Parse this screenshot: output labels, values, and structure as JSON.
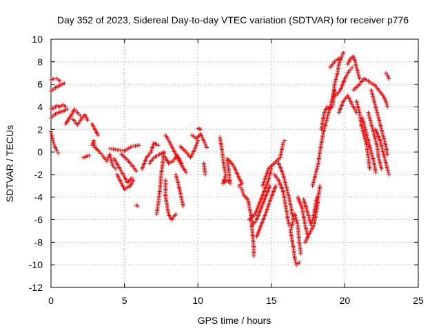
{
  "chart_data": {
    "type": "scatter",
    "title": "Day 352 of 2023, Sidereal Day-to-day VTEC variation (SDTVAR) for receiver p776",
    "xlabel": "GPS time / hours",
    "ylabel": "SDTVAR / TECUs",
    "xlim": [
      0,
      25
    ],
    "ylim": [
      -12,
      10
    ],
    "xticks": [
      "0",
      "5",
      "10",
      "15",
      "20",
      "25"
    ],
    "yticks": [
      "-12",
      "-10",
      "-8",
      "-6",
      "-4",
      "-2",
      "0",
      "2",
      "4",
      "6",
      "8",
      "10"
    ],
    "grid": true,
    "marker": "+",
    "series": [
      {
        "name": "SDTVAR",
        "color": "#ff0000",
        "points": [
          [
            0.0,
            6.4
          ],
          [
            0.2,
            6.5
          ],
          [
            0.4,
            6.5
          ],
          [
            0.6,
            6.3
          ],
          [
            0.0,
            5.4
          ],
          [
            0.3,
            5.7
          ],
          [
            0.6,
            5.9
          ],
          [
            0.9,
            6.1
          ],
          [
            0.0,
            3.8
          ],
          [
            0.2,
            3.9
          ],
          [
            0.4,
            4.1
          ],
          [
            0.6,
            4.0
          ],
          [
            0.8,
            4.2
          ],
          [
            1.0,
            4.0
          ],
          [
            0.0,
            3.0
          ],
          [
            0.2,
            3.3
          ],
          [
            0.5,
            3.5
          ],
          [
            0.8,
            3.6
          ],
          [
            1.1,
            3.8
          ],
          [
            0.0,
            1.8
          ],
          [
            0.1,
            1.2
          ],
          [
            0.2,
            0.7
          ],
          [
            0.3,
            0.4
          ],
          [
            0.4,
            0.1
          ],
          [
            0.5,
            -0.1
          ],
          [
            1.0,
            2.5
          ],
          [
            1.4,
            3.3
          ],
          [
            1.6,
            3.8
          ],
          [
            1.8,
            3.5
          ],
          [
            2.0,
            3.2
          ],
          [
            1.5,
            2.9
          ],
          [
            1.8,
            2.4
          ],
          [
            2.0,
            2.8
          ],
          [
            2.3,
            3.3
          ],
          [
            2.5,
            2.8
          ],
          [
            2.2,
            -0.5
          ],
          [
            2.6,
            -0.3
          ],
          [
            2.8,
            2.5
          ],
          [
            3.0,
            2.0
          ],
          [
            3.2,
            1.5
          ],
          [
            2.8,
            0.6
          ],
          [
            2.9,
            1.0
          ],
          [
            3.0,
            0.4
          ],
          [
            3.3,
            0.0
          ],
          [
            3.5,
            -0.3
          ],
          [
            3.8,
            -0.8
          ],
          [
            4.0,
            -0.2
          ],
          [
            4.2,
            -1.2
          ],
          [
            4.4,
            -1.5
          ],
          [
            4.0,
            0.3
          ],
          [
            4.5,
            0.2
          ],
          [
            5.0,
            0.1
          ],
          [
            5.5,
            0.5
          ],
          [
            6.0,
            0.6
          ],
          [
            4.3,
            -0.6
          ],
          [
            4.7,
            -1.5
          ],
          [
            5.0,
            -2.2
          ],
          [
            5.2,
            -2.7
          ],
          [
            5.5,
            -2.3
          ],
          [
            4.5,
            -2.0
          ],
          [
            4.8,
            -2.8
          ],
          [
            5.0,
            -3.3
          ],
          [
            5.4,
            -3.0
          ],
          [
            5.6,
            -2.5
          ],
          [
            4.8,
            -0.2
          ],
          [
            5.2,
            -0.7
          ],
          [
            5.6,
            -1.3
          ],
          [
            5.8,
            -1.7
          ],
          [
            5.8,
            -4.7
          ],
          [
            5.9,
            -4.8
          ],
          [
            6.2,
            -1.5
          ],
          [
            6.5,
            -0.5
          ],
          [
            6.8,
            0.0
          ],
          [
            7.0,
            0.8
          ],
          [
            7.3,
            0.6
          ],
          [
            6.7,
            -1.0
          ],
          [
            7.0,
            -0.5
          ],
          [
            7.4,
            -0.2
          ],
          [
            7.7,
            0.0
          ],
          [
            7.5,
            -2.0
          ],
          [
            7.4,
            -3.5
          ],
          [
            7.3,
            -4.5
          ],
          [
            7.2,
            -5.5
          ],
          [
            7.8,
            -2.5
          ],
          [
            7.8,
            -4.0
          ],
          [
            8.0,
            -5.5
          ],
          [
            8.2,
            -6.0
          ],
          [
            8.5,
            -5.5
          ],
          [
            7.8,
            -0.5
          ],
          [
            8.0,
            -1.0
          ],
          [
            8.3,
            -0.8
          ],
          [
            8.6,
            -0.3
          ],
          [
            8.9,
            -1.0
          ],
          [
            8.5,
            -2.0
          ],
          [
            8.7,
            -3.0
          ],
          [
            8.9,
            -4.2
          ],
          [
            9.0,
            -4.8
          ],
          [
            7.8,
            1.5
          ],
          [
            8.1,
            0.8
          ],
          [
            8.3,
            0.3
          ],
          [
            8.6,
            -0.5
          ],
          [
            8.9,
            -1.2
          ],
          [
            9.2,
            -1.8
          ],
          [
            8.8,
            0.5
          ],
          [
            9.2,
            0.0
          ],
          [
            9.5,
            -0.5
          ],
          [
            9.8,
            0.3
          ],
          [
            10.0,
            1.0
          ],
          [
            9.6,
            1.5
          ],
          [
            9.9,
            1.2
          ],
          [
            10.2,
            1.6
          ],
          [
            10.4,
            1.0
          ],
          [
            10.6,
            0.4
          ],
          [
            10.0,
            2.1
          ],
          [
            10.2,
            2.0
          ],
          [
            10.4,
            -1.0
          ],
          [
            10.5,
            -2.0
          ],
          [
            11.5,
            1.3
          ],
          [
            11.6,
            0.5
          ],
          [
            11.7,
            -0.5
          ],
          [
            11.8,
            -1.5
          ],
          [
            11.9,
            -2.0
          ],
          [
            11.7,
            -2.8
          ],
          [
            12.0,
            -2.5
          ],
          [
            12.2,
            -2.8
          ],
          [
            12.0,
            -0.6
          ],
          [
            12.3,
            -1.0
          ],
          [
            12.5,
            -1.4
          ],
          [
            12.8,
            -2.3
          ],
          [
            13.0,
            -2.8
          ],
          [
            12.8,
            -3.0
          ],
          [
            13.0,
            -3.3
          ],
          [
            13.1,
            -3.8
          ],
          [
            13.4,
            -4.2
          ],
          [
            13.6,
            -5.5
          ],
          [
            13.7,
            -7.0
          ],
          [
            13.8,
            -8.5
          ],
          [
            13.8,
            -9.2
          ],
          [
            13.5,
            -6.0
          ],
          [
            13.9,
            -5.5
          ],
          [
            14.2,
            -4.5
          ],
          [
            14.5,
            -3.5
          ],
          [
            14.8,
            -2.5
          ],
          [
            15.0,
            -1.5
          ],
          [
            13.7,
            -6.5
          ],
          [
            14.0,
            -6.0
          ],
          [
            14.3,
            -5.0
          ],
          [
            14.6,
            -4.0
          ],
          [
            14.9,
            -3.0
          ],
          [
            14.0,
            -7.5
          ],
          [
            14.3,
            -6.5
          ],
          [
            14.6,
            -5.5
          ],
          [
            15.0,
            -4.0
          ],
          [
            15.3,
            -3.0
          ],
          [
            14.4,
            -3.0
          ],
          [
            14.8,
            -1.5
          ],
          [
            15.2,
            -1.0
          ],
          [
            15.6,
            -0.5
          ],
          [
            15.8,
            0.8
          ],
          [
            15.9,
            1.0
          ],
          [
            15.2,
            -2.0
          ],
          [
            15.5,
            -2.5
          ],
          [
            15.8,
            -3.5
          ],
          [
            16.0,
            -5.0
          ],
          [
            16.2,
            -6.5
          ],
          [
            15.5,
            -1.0
          ],
          [
            15.8,
            -2.0
          ],
          [
            16.0,
            -3.0
          ],
          [
            16.2,
            -4.0
          ],
          [
            16.5,
            -6.0
          ],
          [
            16.3,
            -7.0
          ],
          [
            16.5,
            -8.5
          ],
          [
            16.6,
            -9.5
          ],
          [
            16.7,
            -10.0
          ],
          [
            16.9,
            -9.8
          ],
          [
            16.6,
            -5.5
          ],
          [
            16.8,
            -6.5
          ],
          [
            16.9,
            -8.0
          ],
          [
            17.0,
            -9.0
          ],
          [
            16.8,
            -4.0
          ],
          [
            17.1,
            -5.0
          ],
          [
            17.3,
            -6.5
          ],
          [
            17.5,
            -7.5
          ],
          [
            17.2,
            -4.2
          ],
          [
            17.5,
            -5.5
          ],
          [
            17.7,
            -6.5
          ],
          [
            17.9,
            -5.5
          ],
          [
            18.1,
            -4.0
          ],
          [
            17.3,
            -8.0
          ],
          [
            17.6,
            -7.2
          ],
          [
            17.9,
            -6.5
          ],
          [
            18.1,
            -5.0
          ],
          [
            18.3,
            -3.0
          ],
          [
            17.8,
            -3.0
          ],
          [
            18.0,
            -2.0
          ],
          [
            18.2,
            -1.0
          ],
          [
            18.3,
            0.0
          ],
          [
            18.5,
            1.5
          ],
          [
            18.7,
            2.5
          ],
          [
            18.9,
            3.5
          ],
          [
            19.1,
            4.5
          ],
          [
            19.3,
            5.5
          ],
          [
            18.4,
            2.0
          ],
          [
            18.6,
            3.5
          ],
          [
            18.8,
            4.0
          ],
          [
            19.0,
            3.8
          ],
          [
            19.2,
            4.2
          ],
          [
            19.3,
            6.0
          ],
          [
            19.5,
            7.0
          ],
          [
            19.6,
            7.8
          ],
          [
            19.8,
            8.5
          ],
          [
            19.9,
            8.8
          ],
          [
            19.0,
            7.5
          ],
          [
            19.3,
            8.0
          ],
          [
            19.6,
            8.3
          ],
          [
            19.4,
            5.0
          ],
          [
            19.7,
            5.5
          ],
          [
            20.0,
            6.5
          ],
          [
            20.3,
            7.2
          ],
          [
            20.5,
            7.5
          ],
          [
            19.6,
            3.5
          ],
          [
            19.9,
            4.5
          ],
          [
            20.2,
            5.0
          ],
          [
            20.5,
            4.2
          ],
          [
            20.8,
            3.5
          ],
          [
            20.2,
            7.8
          ],
          [
            20.4,
            8.3
          ],
          [
            20.6,
            8.5
          ],
          [
            20.8,
            7.5
          ],
          [
            21.0,
            6.5
          ],
          [
            20.6,
            5.5
          ],
          [
            21.0,
            6.0
          ],
          [
            21.3,
            6.5
          ],
          [
            21.6,
            6.3
          ],
          [
            21.9,
            6.0
          ],
          [
            20.8,
            4.5
          ],
          [
            21.0,
            3.5
          ],
          [
            21.1,
            2.5
          ],
          [
            21.3,
            1.5
          ],
          [
            21.5,
            0.5
          ],
          [
            21.6,
            -0.5
          ],
          [
            21.7,
            -1.5
          ],
          [
            21.2,
            3.0
          ],
          [
            21.4,
            2.0
          ],
          [
            21.6,
            1.0
          ],
          [
            21.8,
            0.0
          ],
          [
            22.0,
            -1.0
          ],
          [
            22.1,
            -1.8
          ],
          [
            21.6,
            3.5
          ],
          [
            21.8,
            2.5
          ],
          [
            22.0,
            1.5
          ],
          [
            22.2,
            0.5
          ],
          [
            22.3,
            -0.5
          ],
          [
            22.5,
            -1.5
          ],
          [
            21.8,
            5.5
          ],
          [
            22.0,
            4.5
          ],
          [
            22.2,
            3.5
          ],
          [
            22.4,
            2.5
          ],
          [
            22.6,
            1.5
          ],
          [
            22.8,
            0.5
          ],
          [
            22.9,
            -0.2
          ],
          [
            22.0,
            6.0
          ],
          [
            22.3,
            5.5
          ],
          [
            22.6,
            5.0
          ],
          [
            22.8,
            4.5
          ],
          [
            22.9,
            4.0
          ],
          [
            22.1,
            2.0
          ],
          [
            22.4,
            1.0
          ],
          [
            22.7,
            -0.5
          ],
          [
            22.9,
            -1.5
          ],
          [
            23.0,
            -2.0
          ],
          [
            22.8,
            7.0
          ],
          [
            22.9,
            6.8
          ],
          [
            23.0,
            6.5
          ]
        ]
      }
    ]
  }
}
